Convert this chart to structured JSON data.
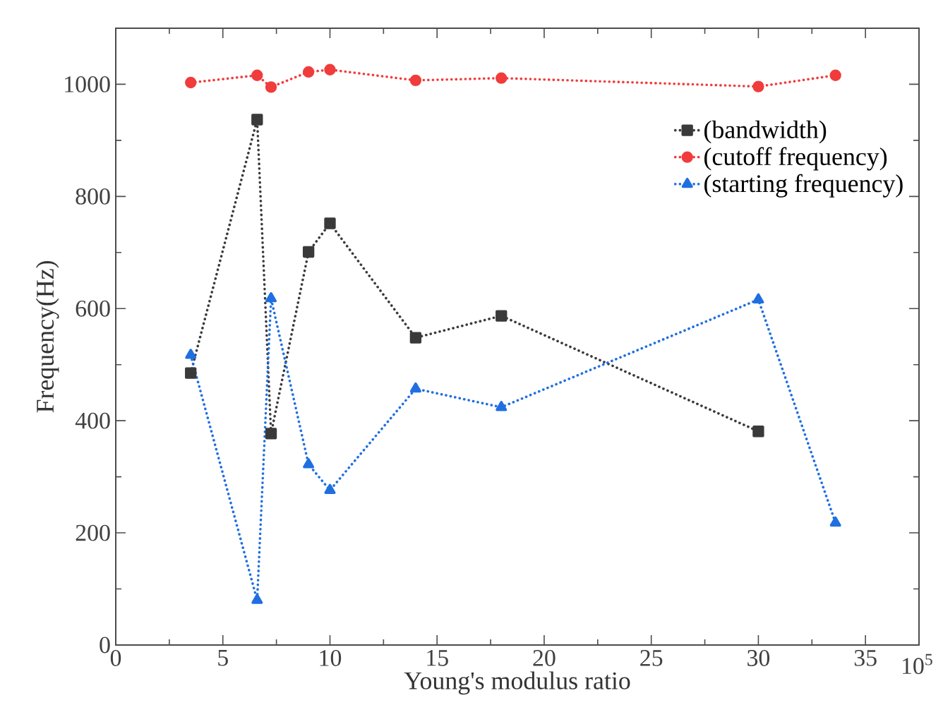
{
  "chart_data": {
    "type": "line",
    "xlabel": "Young's modulus ratio",
    "ylabel": "Frequency(Hz)",
    "x": [
      3.5,
      6.6,
      7.25,
      9,
      10,
      14,
      18,
      30,
      33.6
    ],
    "series": [
      {
        "name": "(bandwidth)",
        "color": "#3a3a3a",
        "marker": "square",
        "values": [
          485,
          937,
          377,
          701,
          752,
          548,
          587,
          381,
          null
        ]
      },
      {
        "name": "(cutoff frequency)",
        "color": "#f03c3c",
        "marker": "circle",
        "values": [
          1003,
          1016,
          995,
          1022,
          1026,
          1007,
          1011,
          996,
          1016
        ]
      },
      {
        "name": "(starting frequency)",
        "color": "#1f6fe0",
        "marker": "triangle",
        "values": [
          517,
          80,
          618,
          322,
          276,
          457,
          424,
          616,
          218
        ]
      }
    ],
    "xlim": [
      0,
      37.5
    ],
    "xticks": [
      0,
      5,
      10,
      15,
      20,
      25,
      30,
      35
    ],
    "ylim": [
      0,
      1100
    ],
    "yticks": [
      0,
      200,
      400,
      600,
      800,
      1000
    ],
    "annotations": [
      "10$^{5}$"
    ],
    "line_style": "dotted",
    "legend": "top right",
    "grid": false
  }
}
